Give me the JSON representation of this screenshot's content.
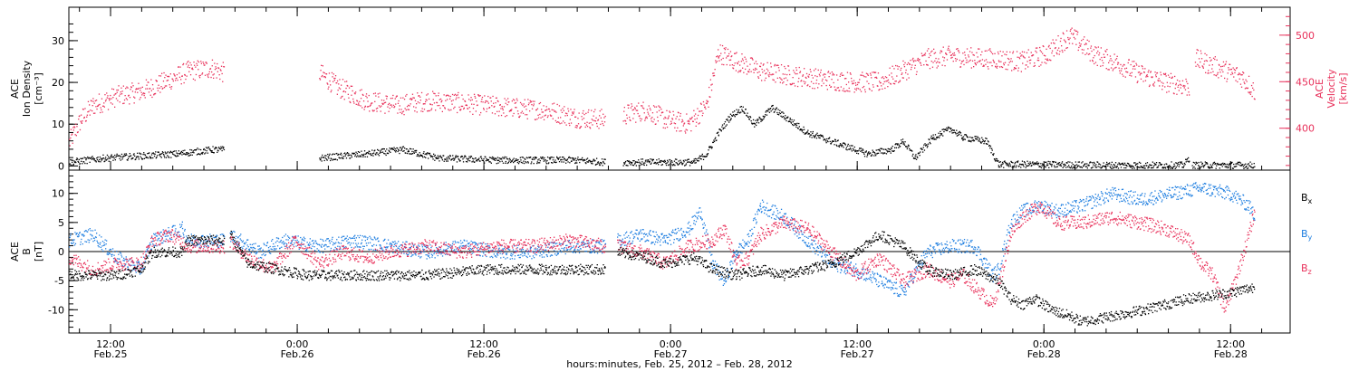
{
  "chart_data": [
    {
      "type": "scatter",
      "panel": "top",
      "left_axis_label": [
        "ACE",
        "Ion Density",
        "[cm⁻³]"
      ],
      "right_axis_label": [
        "ACE",
        "Velocity",
        "[km/s]"
      ],
      "left_ylim": [
        -1,
        38
      ],
      "left_yticks": [
        0,
        10,
        20,
        30
      ],
      "right_ylim": [
        355,
        530
      ],
      "right_yticks": [
        400,
        450,
        500
      ],
      "series": [
        {
          "name": "",
          "axis": "left",
          "color": "#000000",
          "keypoints": [
            [
              0,
              1
            ],
            [
              6,
              2
            ],
            [
              18,
              3
            ],
            [
              24,
              4
            ],
            [
              26,
              4
            ],
            [
              26,
              null
            ],
            [
              42,
              2
            ],
            [
              50,
              3
            ],
            [
              56,
              4
            ],
            [
              62,
              2
            ],
            [
              72,
              1.5
            ],
            [
              85,
              1.5
            ],
            [
              90,
              1
            ],
            [
              90,
              null
            ],
            [
              93,
              1
            ],
            [
              105,
              1
            ],
            [
              107,
              3
            ],
            [
              109,
              8
            ],
            [
              111,
              12
            ],
            [
              113,
              14
            ],
            [
              115,
              10
            ],
            [
              118,
              14
            ],
            [
              121,
              11
            ],
            [
              124,
              8
            ],
            [
              130,
              5
            ],
            [
              134,
              3
            ],
            [
              138,
              4
            ],
            [
              140,
              6
            ],
            [
              142,
              2
            ],
            [
              145,
              7
            ],
            [
              148,
              9
            ],
            [
              150,
              7
            ],
            [
              154,
              6
            ],
            [
              156,
              0.5
            ],
            [
              160,
              0.5
            ],
            [
              175,
              0.3
            ],
            [
              187,
              0.3
            ],
            [
              188,
              2
            ],
            [
              188,
              null
            ],
            [
              188.5,
              0.3
            ],
            [
              199,
              0.3
            ]
          ]
        },
        {
          "name": "",
          "axis": "right",
          "color": "#e8305a",
          "keypoints": [
            [
              0,
              385
            ],
            [
              2,
              410
            ],
            [
              4,
              425
            ],
            [
              8,
              435
            ],
            [
              12,
              440
            ],
            [
              16,
              450
            ],
            [
              20,
              462
            ],
            [
              24,
              465
            ],
            [
              26,
              460
            ],
            [
              26,
              null
            ],
            [
              42,
              460
            ],
            [
              45,
              445
            ],
            [
              50,
              430
            ],
            [
              55,
              425
            ],
            [
              60,
              430
            ],
            [
              65,
              428
            ],
            [
              70,
              425
            ],
            [
              75,
              422
            ],
            [
              80,
              420
            ],
            [
              85,
              412
            ],
            [
              90,
              410
            ],
            [
              90,
              null
            ],
            [
              93,
              415
            ],
            [
              97,
              420
            ],
            [
              100,
              410
            ],
            [
              104,
              405
            ],
            [
              107,
              425
            ],
            [
              109,
              482
            ],
            [
              111,
              475
            ],
            [
              113,
              470
            ],
            [
              116,
              462
            ],
            [
              120,
              458
            ],
            [
              124,
              455
            ],
            [
              128,
              452
            ],
            [
              132,
              450
            ],
            [
              136,
              450
            ],
            [
              140,
              462
            ],
            [
              144,
              475
            ],
            [
              148,
              478
            ],
            [
              152,
              476
            ],
            [
              156,
              475
            ],
            [
              160,
              472
            ],
            [
              164,
              480
            ],
            [
              168,
              500
            ],
            [
              172,
              480
            ],
            [
              176,
              470
            ],
            [
              180,
              458
            ],
            [
              184,
              450
            ],
            [
              188,
              445
            ],
            [
              188,
              null
            ],
            [
              189,
              475
            ],
            [
              193,
              465
            ],
            [
              197,
              455
            ],
            [
              199,
              440
            ]
          ]
        }
      ]
    },
    {
      "type": "scatter",
      "panel": "bottom",
      "left_axis_label": [
        "ACE",
        "B",
        "[nT]"
      ],
      "ylim": [
        -14,
        14
      ],
      "yticks": [
        -10,
        -5,
        0,
        5,
        10
      ],
      "zero_line": true,
      "series": [
        {
          "name": "Bx",
          "label_main": "B",
          "label_sub": "x",
          "color": "#000000",
          "keypoints": [
            [
              0,
              -4
            ],
            [
              8,
              -4
            ],
            [
              12,
              -3
            ],
            [
              14,
              0
            ],
            [
              19,
              0
            ],
            [
              20,
              2
            ],
            [
              26,
              2
            ],
            [
              26,
              null
            ],
            [
              27,
              3
            ],
            [
              30,
              -2
            ],
            [
              35,
              -3
            ],
            [
              40,
              -4
            ],
            [
              50,
              -4
            ],
            [
              60,
              -4
            ],
            [
              70,
              -3
            ],
            [
              80,
              -3
            ],
            [
              85,
              -3
            ],
            [
              90,
              -3
            ],
            [
              90,
              null
            ],
            [
              92,
              0
            ],
            [
              97,
              -1
            ],
            [
              100,
              -2
            ],
            [
              105,
              -1
            ],
            [
              108,
              -3
            ],
            [
              112,
              -4
            ],
            [
              116,
              -3
            ],
            [
              120,
              -4
            ],
            [
              124,
              -3
            ],
            [
              128,
              -2
            ],
            [
              132,
              0
            ],
            [
              136,
              3
            ],
            [
              140,
              1
            ],
            [
              144,
              -3
            ],
            [
              148,
              -4
            ],
            [
              152,
              -3
            ],
            [
              154,
              -4
            ],
            [
              156,
              -5
            ],
            [
              158,
              -8
            ],
            [
              160,
              -9
            ],
            [
              162,
              -8
            ],
            [
              165,
              -10
            ],
            [
              168,
              -11
            ],
            [
              170,
              -12
            ],
            [
              175,
              -11
            ],
            [
              180,
              -10
            ],
            [
              188,
              -8
            ],
            [
              195,
              -7
            ],
            [
              199,
              -6
            ]
          ]
        },
        {
          "name": "By",
          "label_main": "B",
          "label_sub": "y",
          "color": "#1e7ee0",
          "keypoints": [
            [
              0,
              2
            ],
            [
              4,
              3
            ],
            [
              8,
              -1
            ],
            [
              12,
              -3
            ],
            [
              14,
              2
            ],
            [
              19,
              4
            ],
            [
              20,
              2
            ],
            [
              26,
              2
            ],
            [
              26,
              null
            ],
            [
              27,
              3
            ],
            [
              32,
              0
            ],
            [
              36,
              2
            ],
            [
              42,
              1
            ],
            [
              48,
              2
            ],
            [
              54,
              1
            ],
            [
              60,
              0
            ],
            [
              66,
              1
            ],
            [
              72,
              0
            ],
            [
              78,
              0
            ],
            [
              84,
              1
            ],
            [
              90,
              1
            ],
            [
              90,
              null
            ],
            [
              92,
              2
            ],
            [
              96,
              3
            ],
            [
              100,
              2
            ],
            [
              104,
              4
            ],
            [
              106,
              7
            ],
            [
              108,
              -2
            ],
            [
              110,
              -5
            ],
            [
              112,
              0
            ],
            [
              114,
              2
            ],
            [
              116,
              8
            ],
            [
              120,
              6
            ],
            [
              124,
              2
            ],
            [
              128,
              -2
            ],
            [
              132,
              -3
            ],
            [
              136,
              -5
            ],
            [
              140,
              -7
            ],
            [
              144,
              0
            ],
            [
              148,
              1
            ],
            [
              152,
              1
            ],
            [
              155,
              -4
            ],
            [
              156,
              -3
            ],
            [
              158,
              5
            ],
            [
              160,
              7
            ],
            [
              163,
              8
            ],
            [
              166,
              7
            ],
            [
              170,
              8
            ],
            [
              175,
              10
            ],
            [
              180,
              9
            ],
            [
              185,
              10
            ],
            [
              190,
              11
            ],
            [
              195,
              10
            ],
            [
              198,
              8
            ],
            [
              199,
              6
            ]
          ]
        },
        {
          "name": "Bz",
          "label_main": "B",
          "label_sub": "z",
          "color": "#e8305a",
          "keypoints": [
            [
              0,
              -1
            ],
            [
              4,
              -3
            ],
            [
              8,
              -2
            ],
            [
              12,
              -2
            ],
            [
              14,
              2
            ],
            [
              17,
              3
            ],
            [
              20,
              1
            ],
            [
              26,
              1
            ],
            [
              26,
              null
            ],
            [
              27,
              2
            ],
            [
              30,
              -1
            ],
            [
              34,
              -3
            ],
            [
              38,
              2
            ],
            [
              42,
              -2
            ],
            [
              46,
              0
            ],
            [
              50,
              -1
            ],
            [
              54,
              0
            ],
            [
              60,
              1
            ],
            [
              66,
              0
            ],
            [
              72,
              1
            ],
            [
              78,
              1
            ],
            [
              84,
              2
            ],
            [
              90,
              1
            ],
            [
              90,
              null
            ],
            [
              92,
              1
            ],
            [
              96,
              0
            ],
            [
              100,
              -2
            ],
            [
              104,
              1
            ],
            [
              108,
              2
            ],
            [
              110,
              4
            ],
            [
              112,
              -2
            ],
            [
              114,
              -1
            ],
            [
              116,
              3
            ],
            [
              120,
              5
            ],
            [
              124,
              4
            ],
            [
              128,
              0
            ],
            [
              132,
              -4
            ],
            [
              136,
              -1
            ],
            [
              140,
              -5
            ],
            [
              144,
              -3
            ],
            [
              148,
              -5
            ],
            [
              150,
              -4
            ],
            [
              152,
              -6
            ],
            [
              155,
              -9
            ],
            [
              156,
              -6
            ],
            [
              158,
              3
            ],
            [
              160,
              6
            ],
            [
              163,
              8
            ],
            [
              166,
              5
            ],
            [
              170,
              5
            ],
            [
              175,
              6
            ],
            [
              180,
              5
            ],
            [
              184,
              4
            ],
            [
              186,
              3
            ],
            [
              188,
              2
            ],
            [
              190,
              -2
            ],
            [
              192,
              -4
            ],
            [
              194,
              -10
            ],
            [
              196,
              -4
            ],
            [
              198,
              3
            ],
            [
              199,
              7
            ]
          ]
        }
      ]
    }
  ],
  "x_axis": {
    "ticks": [
      {
        "time": "12:00",
        "date": "Feb.25",
        "hours": 12
      },
      {
        "time": "0:00",
        "date": "Feb.26",
        "hours": 24
      },
      {
        "time": "12:00",
        "date": "Feb.26",
        "hours": 36
      },
      {
        "time": "0:00",
        "date": "Feb.27",
        "hours": 48
      },
      {
        "time": "12:00",
        "date": "Feb.27",
        "hours": 60
      },
      {
        "time": "0:00",
        "date": "Feb.28",
        "hours": 72
      },
      {
        "time": "12:00",
        "date": "Feb.28",
        "hours": 84
      }
    ],
    "title": "hours:minutes, Feb. 25, 2012 – Feb. 28, 2012"
  },
  "colors": {
    "black": "#000000",
    "blue": "#1e7ee0",
    "pink": "#e8305a"
  }
}
